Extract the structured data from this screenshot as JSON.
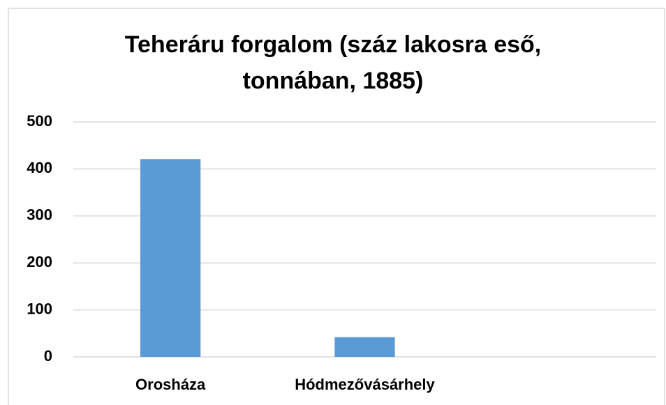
{
  "chart_data": {
    "type": "bar",
    "title": "Teheráru forgalom (száz lakosra eső, tonnában, 1885)",
    "categories": [
      "Orosháza",
      "Hódmezővásárhely",
      null
    ],
    "values": [
      421,
      42,
      null
    ],
    "color": "#5b9bd5",
    "ylim": [
      0,
      500
    ],
    "yticks": [
      0,
      100,
      200,
      300,
      400,
      500
    ],
    "grid": true
  }
}
